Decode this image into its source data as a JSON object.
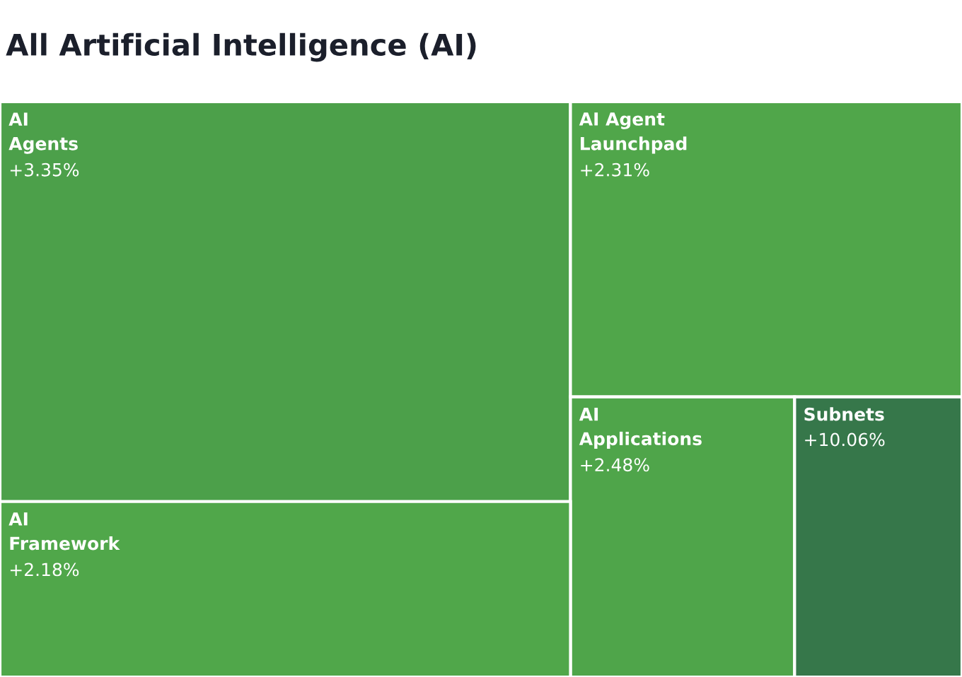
{
  "chart_data": {
    "type": "other",
    "title": "All Artificial Intelligence (AI)",
    "categories": [
      "AI\nAgents",
      "AI Agent\nLaunchpad",
      "AI\nApplications",
      "Subnets",
      "AI\nFramework"
    ],
    "values": [
      3.35,
      2.31,
      2.48,
      10.06,
      2.18
    ],
    "value_labels": [
      "+3.35%",
      "+2.31%",
      "+2.48%",
      "+10.06%",
      "+2.18%"
    ]
  }
}
